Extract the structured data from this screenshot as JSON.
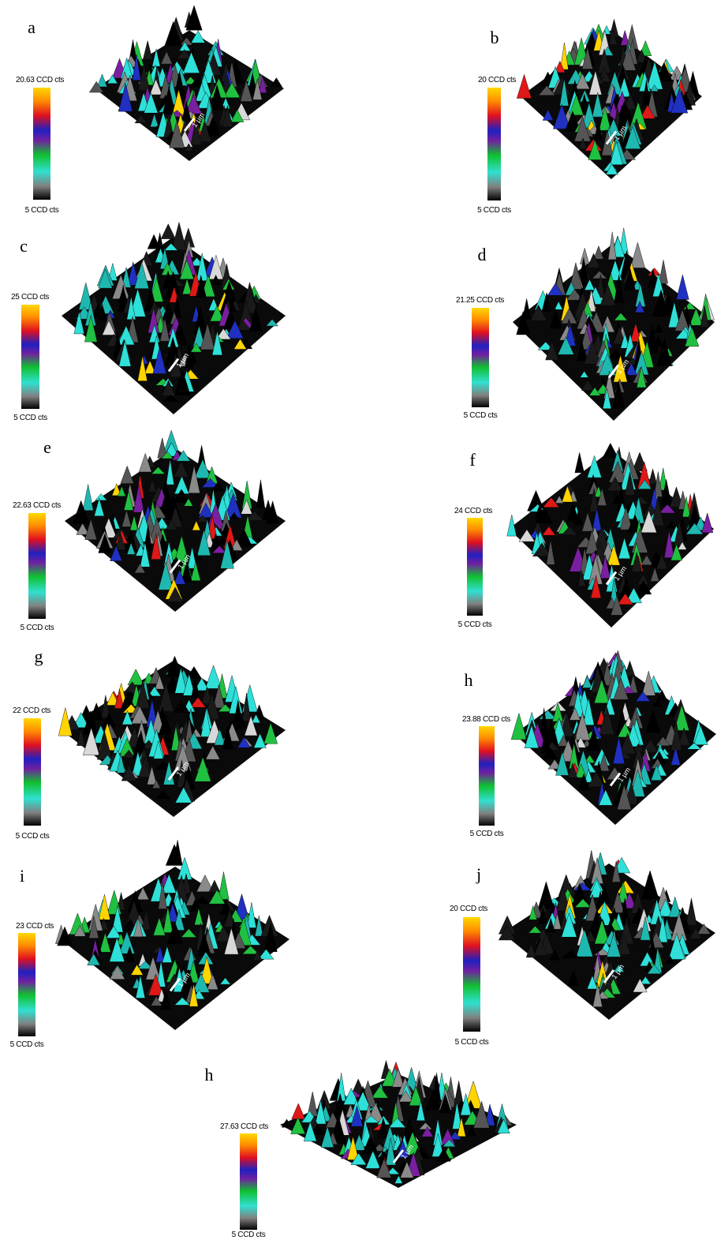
{
  "panels": [
    {
      "label": "a",
      "max_label": "20.63 CCD cts",
      "min_label": "5 CCD cts",
      "scale_label": "1 µm"
    },
    {
      "label": "b",
      "max_label": "20 CCD cts",
      "min_label": "5 CCD cts",
      "scale_label": "1 µm"
    },
    {
      "label": "c",
      "max_label": "25 CCD cts",
      "min_label": "5 CCD cts",
      "scale_label": "1 µm"
    },
    {
      "label": "d",
      "max_label": "21.25 CCD cts",
      "min_label": "5 CCD cts",
      "scale_label": "1 µm"
    },
    {
      "label": "e",
      "max_label": "22.63 CCD cts",
      "min_label": "5 CCD cts",
      "scale_label": "1 µm"
    },
    {
      "label": "f",
      "max_label": "24 CCD cts",
      "min_label": "5 CCD cts",
      "scale_label": "1 µm"
    },
    {
      "label": "g",
      "max_label": "22 CCD cts",
      "min_label": "5 CCD cts",
      "scale_label": "1 µm"
    },
    {
      "label": "h",
      "max_label": "23.88 CCD cts",
      "min_label": "5 CCD cts",
      "scale_label": "1 µm"
    },
    {
      "label": "i",
      "max_label": "23 CCD cts",
      "min_label": "5 CCD cts",
      "scale_label": "1 µm"
    },
    {
      "label": "j",
      "max_label": "20 CCD cts",
      "min_label": "5 CCD cts",
      "scale_label": "1 µm"
    },
    {
      "label": "h",
      "max_label": "27.63 CCD cts",
      "min_label": "5 CCD cts",
      "scale_label": "1 µm"
    }
  ]
}
